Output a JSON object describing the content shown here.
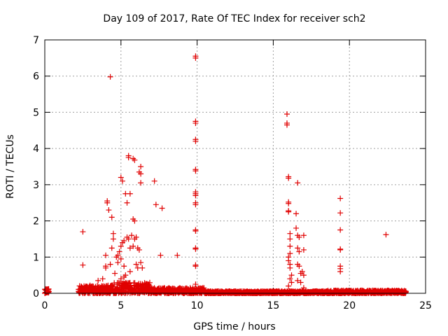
{
  "chart_data": {
    "type": "scatter",
    "title": "Day 109 of 2017, Rate Of TEC Index for receiver sch2",
    "xlabel": "GPS time / hours",
    "ylabel": "ROTI / TECUs",
    "xlim": [
      0,
      25
    ],
    "ylim": [
      0,
      7
    ],
    "xticks": [
      0,
      5,
      10,
      15,
      20,
      25
    ],
    "yticks": [
      0,
      1,
      2,
      3,
      4,
      5,
      6,
      7
    ],
    "grid": true,
    "marker": "+",
    "color": "#e00000",
    "baseline_bands": [
      {
        "x_start": 0.0,
        "x_end": 0.25,
        "y_min": 0.0,
        "y_max": 0.12
      },
      {
        "x_start": 2.2,
        "x_end": 4.5,
        "y_min": 0.0,
        "y_max": 0.22
      },
      {
        "x_start": 4.5,
        "x_end": 7.0,
        "y_min": 0.0,
        "y_max": 0.3
      },
      {
        "x_start": 7.0,
        "x_end": 10.5,
        "y_min": 0.0,
        "y_max": 0.15
      },
      {
        "x_start": 10.5,
        "x_end": 18.5,
        "y_min": 0.0,
        "y_max": 0.06
      },
      {
        "x_start": 18.5,
        "x_end": 23.7,
        "y_min": 0.0,
        "y_max": 0.08
      }
    ],
    "points": [
      [
        2.5,
        1.7
      ],
      [
        2.5,
        0.78
      ],
      [
        3.5,
        0.35
      ],
      [
        3.8,
        0.4
      ],
      [
        4.0,
        1.05
      ],
      [
        4.0,
        0.75
      ],
      [
        4.0,
        0.7
      ],
      [
        4.1,
        2.55
      ],
      [
        4.1,
        2.5
      ],
      [
        4.2,
        2.3
      ],
      [
        4.3,
        5.98
      ],
      [
        4.4,
        2.1
      ],
      [
        4.5,
        1.65
      ],
      [
        4.5,
        1.5
      ],
      [
        4.4,
        1.25
      ],
      [
        4.3,
        0.8
      ],
      [
        4.6,
        0.55
      ],
      [
        4.7,
        1.0
      ],
      [
        4.8,
        1.05
      ],
      [
        4.8,
        0.85
      ],
      [
        4.9,
        1.15
      ],
      [
        5.0,
        3.2
      ],
      [
        5.0,
        1.3
      ],
      [
        5.0,
        0.95
      ],
      [
        5.0,
        0.4
      ],
      [
        5.1,
        3.1
      ],
      [
        5.1,
        1.4
      ],
      [
        5.2,
        1.45
      ],
      [
        5.2,
        0.75
      ],
      [
        5.2,
        0.45
      ],
      [
        5.3,
        2.75
      ],
      [
        5.3,
        0.5
      ],
      [
        5.4,
        2.5
      ],
      [
        5.4,
        1.55
      ],
      [
        5.5,
        3.8
      ],
      [
        5.5,
        3.75
      ],
      [
        5.5,
        1.5
      ],
      [
        5.6,
        2.75
      ],
      [
        5.6,
        1.25
      ],
      [
        5.6,
        0.6
      ],
      [
        5.7,
        1.6
      ],
      [
        5.8,
        3.72
      ],
      [
        5.8,
        2.05
      ],
      [
        5.8,
        1.3
      ],
      [
        5.9,
        3.68
      ],
      [
        5.9,
        2.0
      ],
      [
        5.9,
        1.5
      ],
      [
        6.0,
        1.55
      ],
      [
        6.0,
        0.8
      ],
      [
        6.1,
        1.25
      ],
      [
        6.1,
        0.7
      ],
      [
        6.2,
        3.35
      ],
      [
        6.2,
        1.2
      ],
      [
        6.3,
        3.5
      ],
      [
        6.3,
        3.3
      ],
      [
        6.3,
        3.05
      ],
      [
        6.3,
        0.85
      ],
      [
        6.4,
        0.7
      ],
      [
        6.5,
        0.15
      ],
      [
        7.2,
        3.1
      ],
      [
        7.3,
        2.45
      ],
      [
        7.6,
        1.05
      ],
      [
        7.7,
        2.35
      ],
      [
        8.7,
        1.05
      ],
      [
        9.9,
        6.55
      ],
      [
        9.9,
        6.5
      ],
      [
        9.9,
        4.75
      ],
      [
        9.9,
        4.7
      ],
      [
        9.9,
        4.25
      ],
      [
        9.9,
        4.2
      ],
      [
        9.9,
        3.42
      ],
      [
        9.9,
        3.38
      ],
      [
        9.9,
        2.8
      ],
      [
        9.9,
        2.75
      ],
      [
        9.9,
        2.7
      ],
      [
        9.9,
        2.5
      ],
      [
        9.9,
        2.45
      ],
      [
        9.9,
        1.75
      ],
      [
        9.9,
        1.72
      ],
      [
        9.9,
        1.25
      ],
      [
        9.9,
        1.22
      ],
      [
        9.9,
        0.78
      ],
      [
        9.9,
        0.75
      ],
      [
        9.9,
        0.25
      ],
      [
        15.9,
        4.95
      ],
      [
        15.9,
        4.7
      ],
      [
        15.9,
        4.65
      ],
      [
        16.0,
        3.22
      ],
      [
        16.0,
        3.18
      ],
      [
        16.0,
        2.52
      ],
      [
        16.0,
        2.48
      ],
      [
        16.0,
        2.28
      ],
      [
        16.0,
        2.25
      ],
      [
        16.1,
        1.65
      ],
      [
        16.1,
        1.5
      ],
      [
        16.1,
        1.3
      ],
      [
        16.1,
        1.1
      ],
      [
        16.0,
        1.0
      ],
      [
        16.0,
        0.9
      ],
      [
        16.1,
        0.8
      ],
      [
        16.1,
        0.7
      ],
      [
        16.2,
        0.5
      ],
      [
        16.1,
        0.4
      ],
      [
        16.2,
        0.3
      ],
      [
        16.0,
        0.2
      ],
      [
        16.5,
        2.2
      ],
      [
        16.6,
        3.05
      ],
      [
        16.5,
        1.8
      ],
      [
        16.6,
        1.6
      ],
      [
        16.7,
        1.55
      ],
      [
        16.6,
        1.25
      ],
      [
        16.7,
        1.15
      ],
      [
        16.6,
        0.8
      ],
      [
        16.7,
        0.75
      ],
      [
        16.8,
        0.55
      ],
      [
        16.6,
        0.35
      ],
      [
        16.8,
        0.3
      ],
      [
        17.0,
        1.6
      ],
      [
        17.0,
        1.2
      ],
      [
        16.9,
        0.6
      ],
      [
        17.0,
        0.5
      ],
      [
        17.0,
        0.15
      ],
      [
        19.4,
        2.62
      ],
      [
        19.4,
        2.22
      ],
      [
        19.4,
        1.75
      ],
      [
        19.4,
        1.22
      ],
      [
        19.4,
        1.2
      ],
      [
        19.4,
        0.75
      ],
      [
        19.4,
        0.68
      ],
      [
        19.4,
        0.6
      ],
      [
        22.4,
        1.62
      ],
      [
        0.1,
        0.1
      ],
      [
        0.15,
        0.05
      ]
    ]
  }
}
